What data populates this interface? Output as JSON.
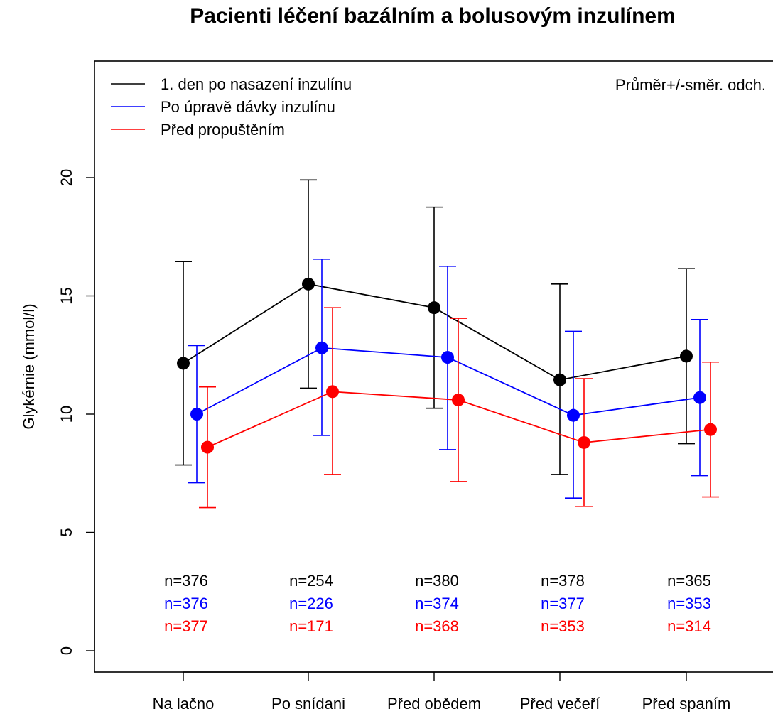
{
  "chart_data": {
    "type": "line",
    "title": "Pacienti léčení bazálním a bolusovým inzulínem",
    "xlabel": "",
    "ylabel": "Glykémie (mmol/l)",
    "ylim": [
      0,
      22
    ],
    "yticks": [
      0,
      5,
      10,
      15,
      20
    ],
    "categories": [
      "Na lačno",
      "Po snídani",
      "Před obědem",
      "Před večeří",
      "Před spaním"
    ],
    "note": "Průměr+/-směr. odch.",
    "legend_position": "top-left",
    "grid": false,
    "error_bars": "mean ± SD",
    "series": [
      {
        "name": "1. den po nasazení inzulínu",
        "color": "#000000",
        "mean": [
          12.15,
          15.5,
          14.5,
          11.45,
          12.45
        ],
        "lower": [
          7.85,
          11.1,
          10.25,
          7.45,
          8.75
        ],
        "upper": [
          16.45,
          19.9,
          18.75,
          15.5,
          16.15
        ],
        "n": [
          "n=376",
          "n=254",
          "n=380",
          "n=378",
          "n=365"
        ]
      },
      {
        "name": "Po úpravě dávky inzulínu",
        "color": "#0000ff",
        "mean": [
          10.0,
          12.8,
          12.4,
          9.95,
          10.7
        ],
        "lower": [
          7.1,
          9.1,
          8.5,
          6.45,
          7.4
        ],
        "upper": [
          12.9,
          16.55,
          16.25,
          13.5,
          14.0
        ],
        "n": [
          "n=376",
          "n=226",
          "n=374",
          "n=377",
          "n=353"
        ]
      },
      {
        "name": "Před propuštěním",
        "color": "#ff0000",
        "mean": [
          8.6,
          10.95,
          10.6,
          8.8,
          9.35
        ],
        "lower": [
          6.05,
          7.45,
          7.15,
          6.1,
          6.5
        ],
        "upper": [
          11.15,
          14.5,
          14.05,
          11.5,
          12.2
        ],
        "n": [
          "n=377",
          "n=171",
          "n=368",
          "n=353",
          "n=314"
        ]
      }
    ]
  }
}
